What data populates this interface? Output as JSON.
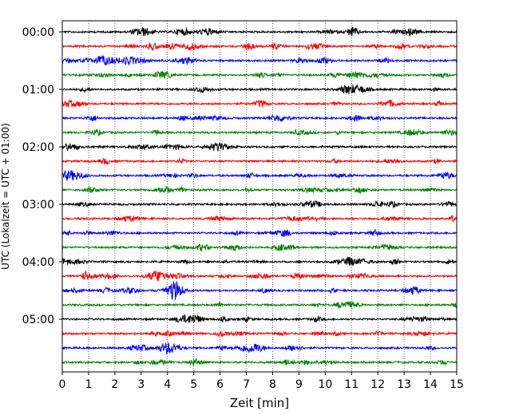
{
  "chart_data": {
    "type": "line",
    "title": "",
    "xlabel": "Zeit  [min]",
    "ylabel": "UTC (Lokalzeit = UTC + 01:00)",
    "xlim": [
      0,
      15
    ],
    "x_ticks": [
      "0",
      "1",
      "2",
      "3",
      "4",
      "5",
      "6",
      "7",
      "8",
      "9",
      "10",
      "11",
      "12",
      "13",
      "14",
      "15"
    ],
    "y_ticks": [
      "00:00",
      "01:00",
      "02:00",
      "03:00",
      "04:00",
      "05:00"
    ],
    "grid": "vertical dotted lines at each minute",
    "trace_count": 24,
    "trace_minutes": 15,
    "trace_colors": [
      "#000000",
      "#ff0000",
      "#0000ff",
      "#008000"
    ]
  }
}
